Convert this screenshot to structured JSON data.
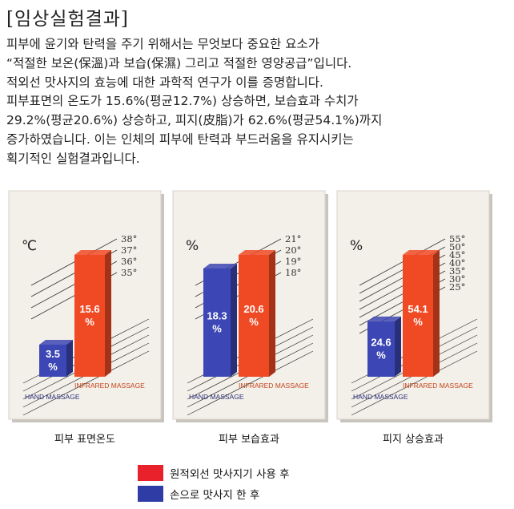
{
  "title": "[임상실험결과]",
  "paragraph": [
    "피부에 윤기와 탄력을 주기 위해서는 무엇보다 중요한 요소가",
    "“적절한 보온(保溫)과 보습(保濕) 그리고 적절한 영양공급”입니다.",
    "적외선 맛사지의 효능에 대한 과학적 연구가 이를 증명합니다.",
    "피부표면의 온도가 15.6%(평균12.7%) 상승하면, 보습효과 수치가",
    "29.2%(평균20.6%) 상승하고, 피지(皮脂)가 62.6%(평균54.1%)까지",
    "증가하였습니다. 이는 인체의 피부에 탄력과 부드러움을 유지시키는",
    "획기적인 실험결과입니다."
  ],
  "colors": {
    "infrared": "#f04a24",
    "hand": "#3c46b4",
    "panel": "#f3efe9"
  },
  "legend": [
    {
      "label": "원적외선 맛사지기 사용 후",
      "color": "#e8212b"
    },
    {
      "label": "손으로 맛사지 한 후",
      "color": "#2f3ca6"
    }
  ],
  "chart_data": [
    {
      "type": "bar",
      "unit": "℃",
      "caption": "피부 표면온도",
      "ticks": [
        "38°",
        "37°",
        "36°",
        "35°"
      ],
      "categories": [
        "HAND MASSAGE",
        "INFRARED MASSAGE"
      ],
      "values": [
        3.5,
        15.6
      ],
      "labels": [
        "3.5\n%",
        "15.6\n%"
      ]
    },
    {
      "type": "bar",
      "unit": "%",
      "caption": "피부 보습효과",
      "ticks": [
        "21°",
        "20°",
        "19°",
        "18°"
      ],
      "categories": [
        "HAND MASSAGE",
        "INFRARED MASSAGE"
      ],
      "values": [
        18.3,
        20.6
      ],
      "labels": [
        "18.3\n%",
        "20.6\n%"
      ]
    },
    {
      "type": "bar",
      "unit": "%",
      "caption": "피지 상승효과",
      "ticks": [
        "55°",
        "50°",
        "45°",
        "40°",
        "35°",
        "30°",
        "25°"
      ],
      "categories": [
        "HAND MASSAGE",
        "INFRARED MASSAGE"
      ],
      "values": [
        24.6,
        54.1
      ],
      "labels": [
        "24.6\n%",
        "54.1\n%"
      ]
    }
  ]
}
